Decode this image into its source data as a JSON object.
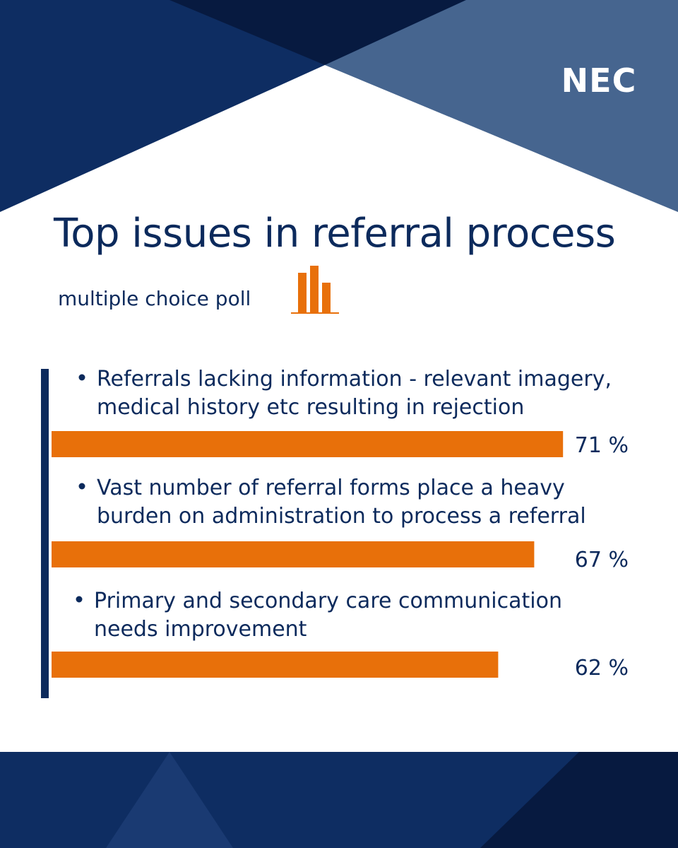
{
  "title": "Top issues in referral process",
  "subtitle": "multiple choice poll",
  "logo_text": "NEC",
  "icons": {
    "poll": "bar-chart-icon",
    "bullet": "bullet-icon"
  },
  "colors": {
    "navy": "#0c2a5c",
    "bar": "#e8700a",
    "panel_dark": "#071a40",
    "panel_mid": "#0e2d62",
    "panel_light": "#46658f"
  },
  "chart_data": {
    "type": "bar",
    "orientation": "horizontal",
    "categories": [
      [
        "Referrals lacking information - relevant imagery,",
        "medical history etc resulting in rejection"
      ],
      [
        "Vast number of referral forms place a heavy",
        "burden on administration to process a referral"
      ],
      [
        "Primary and secondary care communication",
        "needs improvement"
      ]
    ],
    "values": [
      71,
      67,
      62
    ],
    "value_labels": [
      "71 %",
      "67 %",
      "62 %"
    ],
    "unit": "%",
    "title": "Top issues in referral process",
    "xlim": [
      0,
      100
    ]
  }
}
